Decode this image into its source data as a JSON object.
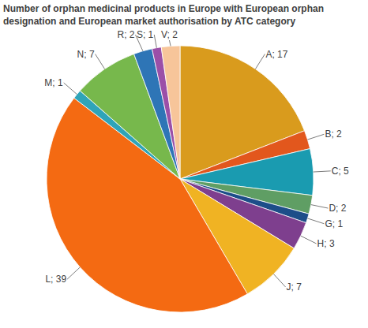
{
  "chart_data": {
    "type": "pie",
    "title": "Number of orphan medicinal products in Europe with European orphan designation and European market authorisation by ATC category",
    "categories": [
      "A",
      "B",
      "C",
      "D",
      "G",
      "H",
      "J",
      "L",
      "M",
      "N",
      "R",
      "S",
      "V"
    ],
    "values": [
      17,
      2,
      5,
      2,
      1,
      3,
      7,
      39,
      1,
      7,
      2,
      1,
      2
    ],
    "value_labels": [
      "A; 17",
      "B; 2",
      "C; 5",
      "D; 2",
      "G; 1",
      "H; 3",
      "J; 7",
      "L; 39",
      "M; 1",
      "N; 7",
      "R; 2",
      "S; 1",
      "V; 2"
    ],
    "colors": [
      "#d99b1d",
      "#e2571d",
      "#1a9bb0",
      "#5f9e64",
      "#1d4e89",
      "#7e3f8e",
      "#f0b323",
      "#f46a12",
      "#2fa4b8",
      "#77b84c",
      "#2e75b6",
      "#9b4fa8",
      "#f7c59a"
    ],
    "data_labels": true
  }
}
